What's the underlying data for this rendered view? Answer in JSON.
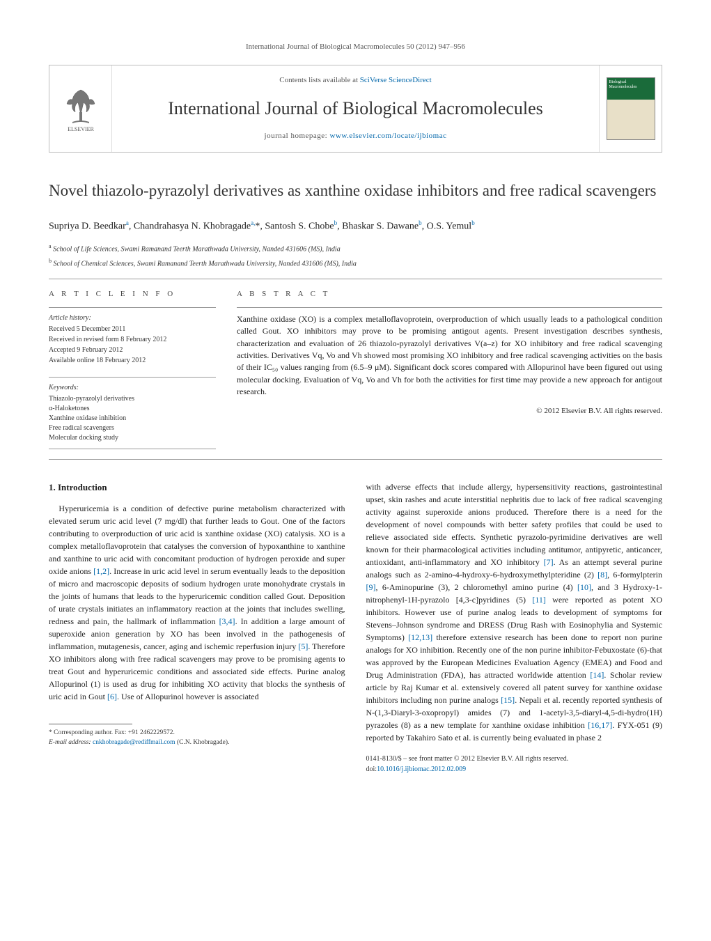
{
  "running_head": "International Journal of Biological Macromolecules 50 (2012) 947–956",
  "header": {
    "contents_prefix": "Contents lists available at ",
    "contents_link": "SciVerse ScienceDirect",
    "journal": "International Journal of Biological Macromolecules",
    "homepage_prefix": "journal homepage: ",
    "homepage_link": "www.elsevier.com/locate/ijbiomac",
    "publisher": "ELSEVIER",
    "cover_label": "Biological Macromolecules"
  },
  "title": "Novel thiazolo-pyrazolyl derivatives as xanthine oxidase inhibitors and free radical scavengers",
  "authors_html": "Supriya D. Beedkar<sup>a</sup>, Chandrahasya N. Khobragade<sup>a,</sup>*, Santosh S. Chobe<sup>b</sup>, Bhaskar S. Dawane<sup>b</sup>, O.S. Yemul<sup>b</sup>",
  "affiliations": [
    {
      "sup": "a",
      "text": "School of Life Sciences, Swami Ramanand Teerth Marathwada University, Nanded 431606 (MS), India"
    },
    {
      "sup": "b",
      "text": "School of Chemical Sciences, Swami Ramanand Teerth Marathwada University, Nanded 431606 (MS), India"
    }
  ],
  "article_info_label": "A R T I C L E   I N F O",
  "abstract_label": "A B S T R A C T",
  "history": {
    "label": "Article history:",
    "received": "Received 5 December 2011",
    "revised": "Received in revised form 8 February 2012",
    "accepted": "Accepted 9 February 2012",
    "online": "Available online 18 February 2012"
  },
  "keywords": {
    "label": "Keywords:",
    "items": [
      "Thiazolo-pyrazolyl derivatives",
      "α-Haloketones",
      "Xanthine oxidase inhibition",
      "Free radical scavengers",
      "Molecular docking study"
    ]
  },
  "abstract": "Xanthine oxidase (XO) is a complex metalloflavoprotein, overproduction of which usually leads to a pathological condition called Gout. XO inhibitors may prove to be promising antigout agents. Present investigation describes synthesis, characterization and evaluation of 26 thiazolo-pyrazolyl derivatives V(a–z) for XO inhibitory and free radical scavenging activities. Derivatives Vq, Vo and Vh showed most promising XO inhibitory and free radical scavenging activities on the basis of their IC₅₀ values ranging from (6.5–9 μM). Significant dock scores compared with Allopurinol have been figured out using molecular docking. Evaluation of Vq, Vo and Vh for both the activities for first time may provide a new approach for antigout research.",
  "copyright": "© 2012 Elsevier B.V. All rights reserved.",
  "intro_heading": "1.  Introduction",
  "col1": "Hyperuricemia is a condition of defective purine metabolism characterized with elevated serum uric acid level (7 mg/dl) that further leads to Gout. One of the factors contributing to overproduction of uric acid is xanthine oxidase (XO) catalysis. XO is a complex metalloflavoprotein that catalyses the conversion of hypoxanthine to xanthine and xanthine to uric acid with concomitant production of hydrogen peroxide and super oxide anions <span class=\"ref\">[1,2]</span>. Increase in uric acid level in serum eventually leads to the deposition of micro and macroscopic deposits of sodium hydrogen urate monohydrate crystals in the joints of humans that leads to the hyperuricemic condition called Gout. Deposition of urate crystals initiates an inflammatory reaction at the joints that includes swelling, redness and pain, the hallmark of inflammation <span class=\"ref\">[3,4]</span>. In addition a large amount of superoxide anion generation by XO has been involved in the pathogenesis of inflammation, mutagenesis, cancer, aging and ischemic reperfusion injury <span class=\"ref\">[5]</span>. Therefore XO inhibitors along with free radical scavengers may prove to be promising agents to treat Gout and hyperuricemic conditions and associated side effects. Purine analog Allopurinol (1) is used as drug for inhibiting XO activity that blocks the synthesis of uric acid in Gout <span class=\"ref\">[6]</span>. Use of Allopurinol however is associated",
  "col2": "with adverse effects that include allergy, hypersensitivity reactions, gastrointestinal upset, skin rashes and acute interstitial nephritis due to lack of free radical scavenging activity against superoxide anions produced. Therefore there is a need for the development of novel compounds with better safety profiles that could be used to relieve associated side effects. Synthetic pyrazolo-pyrimidine derivatives are well known for their pharmacological activities including antitumor, antipyretic, anticancer, antioxidant, anti-inflammatory and XO inhibitory <span class=\"ref\">[7]</span>. As an attempt several purine analogs such as 2-amino-4-hydroxy-6-hydroxymethylpteridine (2) <span class=\"ref\">[8]</span>, 6-formylpterin <span class=\"ref\">[9]</span>, 6-Aminopurine (3), 2 chloromethyl amino purine (4) <span class=\"ref\">[10]</span>, and 3 Hydroxy-1-nitrophenyl-1H-pyrazolo [4,3-c]pyridines (5) <span class=\"ref\">[11]</span> were reported as potent XO inhibitors. However use of purine analog leads to development of symptoms for Stevens–Johnson syndrome and DRESS (Drug Rash with Eosinophylia and Systemic Symptoms) <span class=\"ref\">[12,13]</span> therefore extensive research has been done to report non purine analogs for XO inhibition. Recently one of the non purine inhibitor-Febuxostate (6)-that was approved by the European Medicines Evaluation Agency (EMEA) and Food and Drug Administration (FDA), has attracted worldwide attention <span class=\"ref\">[14]</span>. Scholar review article by Raj Kumar et al. extensively covered all patent survey for xanthine oxidase inhibitors including non purine analogs <span class=\"ref\">[15]</span>. Nepali et al. recently reported synthesis of N-(1,3-Diaryl-3-oxopropyl) amides (7) and 1-acetyl-3,5-diaryl-4,5-di-hydro(1H) pyrazoles (8) as a new template for xanthine oxidase inhibition <span class=\"ref\">[16,17]</span>. FYX-051 (9) reported by Takahiro Sato et al. is currently being evaluated in phase 2",
  "footnote": {
    "corr": "* Corresponding author. Fax: +91 2462229572.",
    "email_label": "E-mail address: ",
    "email": "cnkhobragade@rediffmail.com",
    "email_suffix": " (C.N. Khobragade)."
  },
  "doi": {
    "line1": "0141-8130/$ – see front matter © 2012 Elsevier B.V. All rights reserved.",
    "line2_prefix": "doi:",
    "line2_link": "10.1016/j.ijbiomac.2012.02.009"
  },
  "colors": {
    "link": "#0066aa",
    "rule": "#999999",
    "text": "#222222",
    "cover_green": "#1a6b3a"
  }
}
